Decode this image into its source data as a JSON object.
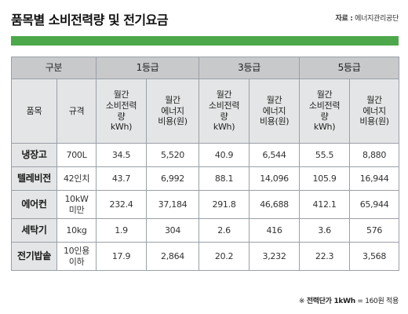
{
  "header": {
    "title": "품목별 소비전력량 및 전기요금",
    "source_label": "자료 :",
    "source_value": "에너지관리공단"
  },
  "table": {
    "group_header": "구분",
    "grades": [
      "1등급",
      "3등급",
      "5등급"
    ],
    "col_item": "품목",
    "col_spec": "규격",
    "sub_power": [
      "월간",
      "소비전력",
      "량",
      "kWh)"
    ],
    "sub_cost": [
      "월간",
      "에너지",
      "비용(원)"
    ],
    "rows": [
      {
        "name": "냉장고",
        "spec": [
          "700L"
        ],
        "g1_kwh": "34.5",
        "g1_won": "5,520",
        "g3_kwh": "40.9",
        "g3_won": "6,544",
        "g5_kwh": "55.5",
        "g5_won": "8,880"
      },
      {
        "name": "텔레비전",
        "spec": [
          "42인치"
        ],
        "g1_kwh": "43.7",
        "g1_won": "6,992",
        "g3_kwh": "88.1",
        "g3_won": "14,096",
        "g5_kwh": "105.9",
        "g5_won": "16,944"
      },
      {
        "name": "에어컨",
        "spec": [
          "10kW",
          "미만"
        ],
        "g1_kwh": "232.4",
        "g1_won": "37,184",
        "g3_kwh": "291.8",
        "g3_won": "46,688",
        "g5_kwh": "412.1",
        "g5_won": "65,944"
      },
      {
        "name": "세탁기",
        "spec": [
          "10kg"
        ],
        "g1_kwh": "1.9",
        "g1_won": "304",
        "g3_kwh": "2.6",
        "g3_won": "416",
        "g5_kwh": "3.6",
        "g5_won": "576"
      },
      {
        "name": "전기밥솥",
        "spec": [
          "10인용",
          "이하"
        ],
        "g1_kwh": "17.9",
        "g1_won": "2,864",
        "g3_kwh": "20.2",
        "g3_won": "3,232",
        "g5_kwh": "22.3",
        "g5_won": "3,568"
      }
    ]
  },
  "footnote": {
    "mark": "※",
    "label": "전력단가 1kWh",
    "value": "= 160원 적용"
  },
  "colors": {
    "accent_bar": "#4ca84a",
    "header_grey": "#c8c9cb",
    "header_light": "#e4e5e6"
  }
}
